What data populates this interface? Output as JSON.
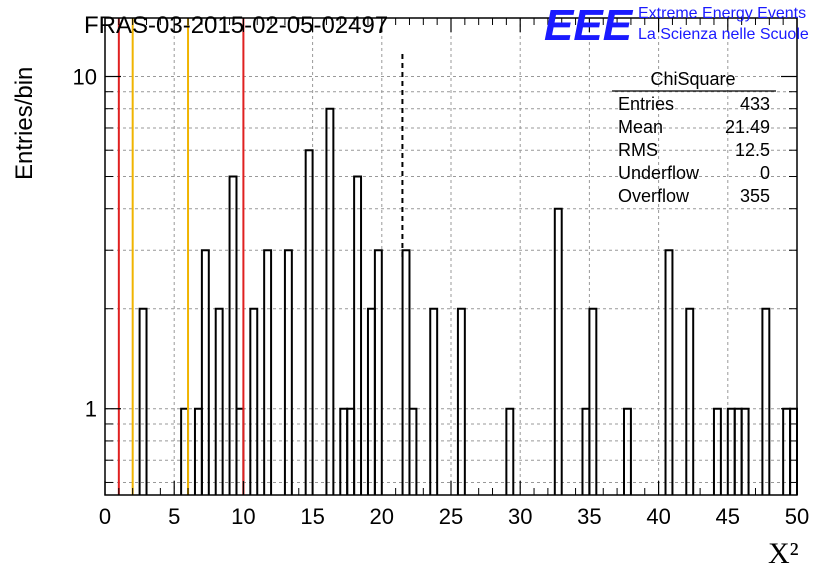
{
  "chart_data": {
    "type": "histogram",
    "title": "FRAS-03-2015-02-05-02497",
    "xlabel": "X²",
    "ylabel": "Entries/bin",
    "xlim": [
      0,
      50
    ],
    "ylim": [
      0.55,
      15
    ],
    "log_y": true,
    "grid": true,
    "bin_width": 0.5,
    "x_ticks": [
      0,
      5,
      10,
      15,
      20,
      25,
      30,
      35,
      40,
      45,
      50
    ],
    "y_ticks": [
      1,
      10
    ],
    "bins": [
      {
        "x": 2.5,
        "value": 2
      },
      {
        "x": 5.5,
        "value": 1
      },
      {
        "x": 6.5,
        "value": 1
      },
      {
        "x": 7.0,
        "value": 3
      },
      {
        "x": 8.0,
        "value": 2
      },
      {
        "x": 9.0,
        "value": 5
      },
      {
        "x": 9.5,
        "value": 1
      },
      {
        "x": 10.5,
        "value": 2
      },
      {
        "x": 11.5,
        "value": 3
      },
      {
        "x": 13.0,
        "value": 3
      },
      {
        "x": 14.5,
        "value": 6
      },
      {
        "x": 16.0,
        "value": 8
      },
      {
        "x": 17.0,
        "value": 1
      },
      {
        "x": 17.5,
        "value": 1
      },
      {
        "x": 18.0,
        "value": 5
      },
      {
        "x": 19.0,
        "value": 2
      },
      {
        "x": 19.5,
        "value": 3
      },
      {
        "x": 21.5,
        "value": 3
      },
      {
        "x": 22.0,
        "value": 1
      },
      {
        "x": 23.5,
        "value": 2
      },
      {
        "x": 25.5,
        "value": 2
      },
      {
        "x": 29.0,
        "value": 1
      },
      {
        "x": 32.5,
        "value": 4
      },
      {
        "x": 34.5,
        "value": 1
      },
      {
        "x": 35.0,
        "value": 2
      },
      {
        "x": 37.5,
        "value": 1
      },
      {
        "x": 40.5,
        "value": 3
      },
      {
        "x": 42.0,
        "value": 2
      },
      {
        "x": 44.0,
        "value": 1
      },
      {
        "x": 45.0,
        "value": 1
      },
      {
        "x": 45.5,
        "value": 1
      },
      {
        "x": 46.0,
        "value": 1
      },
      {
        "x": 47.5,
        "value": 2
      },
      {
        "x": 49.0,
        "value": 1
      },
      {
        "x": 49.5,
        "value": 1
      }
    ],
    "vertical_lines": [
      {
        "x": 1,
        "color": "#e02020",
        "style": "solid"
      },
      {
        "x": 2,
        "color": "#f0b400",
        "style": "solid"
      },
      {
        "x": 6,
        "color": "#f0b400",
        "style": "solid"
      },
      {
        "x": 10,
        "color": "#e02020",
        "style": "solid"
      },
      {
        "x": 21.49,
        "color": "#000000",
        "style": "dashed"
      }
    ],
    "stats_box": {
      "title": "ChiSquare",
      "rows": [
        {
          "label": "Entries",
          "value": "433"
        },
        {
          "label": "Mean",
          "value": "21.49"
        },
        {
          "label": "RMS",
          "value": "12.5"
        },
        {
          "label": "Underflow",
          "value": "0"
        },
        {
          "label": "Overflow",
          "value": "355"
        }
      ]
    }
  },
  "logo": {
    "mark": "EEE",
    "line1": "Extreme Energy Events",
    "line2": "La Scienza nelle Scuole",
    "color": "#1a1aff"
  }
}
